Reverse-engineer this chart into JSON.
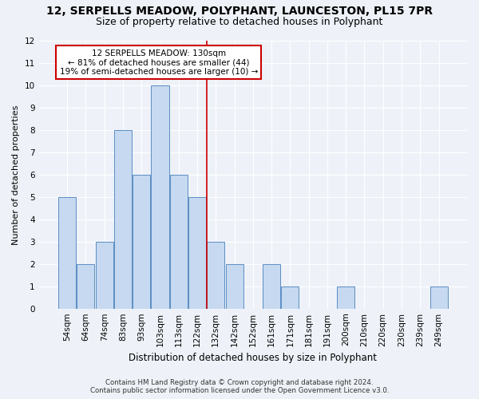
{
  "title": "12, SERPELLS MEADOW, POLYPHANT, LAUNCESTON, PL15 7PR",
  "subtitle": "Size of property relative to detached houses in Polyphant",
  "xlabel": "Distribution of detached houses by size in Polyphant",
  "ylabel": "Number of detached properties",
  "categories": [
    "54sqm",
    "64sqm",
    "74sqm",
    "83sqm",
    "93sqm",
    "103sqm",
    "113sqm",
    "122sqm",
    "132sqm",
    "142sqm",
    "152sqm",
    "161sqm",
    "171sqm",
    "181sqm",
    "191sqm",
    "200sqm",
    "210sqm",
    "220sqm",
    "230sqm",
    "239sqm",
    "249sqm"
  ],
  "values": [
    5,
    2,
    3,
    8,
    6,
    10,
    6,
    5,
    3,
    2,
    0,
    2,
    1,
    0,
    0,
    1,
    0,
    0,
    0,
    0,
    1
  ],
  "bar_color": "#c6d9f0",
  "bar_edge_color": "#5b8ec4",
  "vline_color": "#cc0000",
  "annotation_line1": "12 SERPELLS MEADOW: 130sqm",
  "annotation_line2": "← 81% of detached houses are smaller (44)",
  "annotation_line3": "19% of semi-detached houses are larger (10) →",
  "annotation_box_color": "#cc0000",
  "ylim": [
    0,
    12
  ],
  "yticks": [
    0,
    1,
    2,
    3,
    4,
    5,
    6,
    7,
    8,
    9,
    10,
    11,
    12
  ],
  "footer_line1": "Contains HM Land Registry data © Crown copyright and database right 2024.",
  "footer_line2": "Contains public sector information licensed under the Open Government Licence v3.0.",
  "background_color": "#eef2f8",
  "plot_background": "#eef2f8",
  "grid_color": "#ffffff",
  "title_fontsize": 10,
  "subtitle_fontsize": 9,
  "tick_fontsize": 7.5,
  "ylabel_fontsize": 8,
  "xlabel_fontsize": 8.5
}
